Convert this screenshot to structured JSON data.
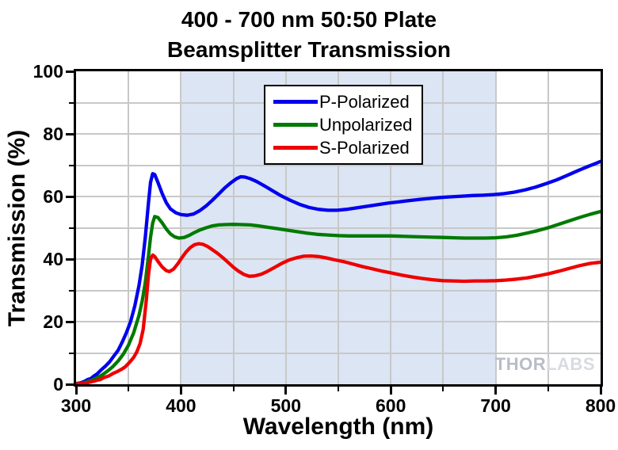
{
  "title": {
    "line1": "400 - 700 nm 50:50 Plate",
    "line2": "Beamsplitter Transmission"
  },
  "watermark": {
    "part1": "THOR",
    "part2": "LABS"
  },
  "colors": {
    "band": "#dce5f4",
    "grid": "#c8c8c8",
    "axis": "#000000",
    "watermark_dark": "#b9bcc6",
    "watermark_light": "#d9dbe2"
  },
  "chart_data": {
    "type": "line",
    "title": "400 - 700 nm 50:50 Plate Beamsplitter Transmission",
    "xlabel": "Wavelength (nm)",
    "ylabel": "Transmission (%)",
    "xlim": [
      300,
      800
    ],
    "ylim": [
      0,
      100
    ],
    "x_major_ticks": [
      300,
      400,
      500,
      600,
      700,
      800
    ],
    "x_minor_ticks": [
      350,
      450,
      550,
      650,
      750
    ],
    "y_major_ticks": [
      0,
      20,
      40,
      60,
      80,
      100
    ],
    "y_minor_ticks": [
      10,
      30,
      50,
      70,
      90
    ],
    "grid": true,
    "shaded_band_x": [
      400,
      700
    ],
    "legend_position": "top-center",
    "series": [
      {
        "name": "P-Polarized",
        "color": "#0000ee",
        "points": [
          [
            300,
            0.2
          ],
          [
            304,
            0.4
          ],
          [
            308,
            0.9
          ],
          [
            311,
            1.5
          ],
          [
            314,
            1.8
          ],
          [
            317,
            2.6
          ],
          [
            320,
            3.3
          ],
          [
            324,
            4.6
          ],
          [
            328,
            5.8
          ],
          [
            332,
            7.2
          ],
          [
            336,
            9.0
          ],
          [
            340,
            10.8
          ],
          [
            344,
            13.5
          ],
          [
            348,
            16.5
          ],
          [
            352,
            20.0
          ],
          [
            356,
            25.0
          ],
          [
            360,
            31.5
          ],
          [
            363,
            38.0
          ],
          [
            366,
            47.0
          ],
          [
            369,
            58.0
          ],
          [
            371,
            64.5
          ],
          [
            373,
            67.3
          ],
          [
            375,
            67.0
          ],
          [
            378,
            64.5
          ],
          [
            382,
            61.0
          ],
          [
            386,
            58.0
          ],
          [
            390,
            56.0
          ],
          [
            395,
            54.8
          ],
          [
            400,
            54.2
          ],
          [
            406,
            54.0
          ],
          [
            412,
            54.4
          ],
          [
            418,
            55.5
          ],
          [
            424,
            57.0
          ],
          [
            430,
            58.8
          ],
          [
            436,
            60.8
          ],
          [
            442,
            62.8
          ],
          [
            448,
            64.5
          ],
          [
            453,
            65.7
          ],
          [
            457,
            66.3
          ],
          [
            461,
            66.2
          ],
          [
            466,
            65.7
          ],
          [
            472,
            64.8
          ],
          [
            479,
            63.5
          ],
          [
            487,
            61.9
          ],
          [
            495,
            60.3
          ],
          [
            504,
            58.8
          ],
          [
            513,
            57.5
          ],
          [
            522,
            56.5
          ],
          [
            531,
            55.9
          ],
          [
            540,
            55.6
          ],
          [
            549,
            55.6
          ],
          [
            558,
            55.9
          ],
          [
            568,
            56.4
          ],
          [
            578,
            56.9
          ],
          [
            588,
            57.4
          ],
          [
            598,
            57.9
          ],
          [
            608,
            58.3
          ],
          [
            618,
            58.7
          ],
          [
            628,
            59.1
          ],
          [
            638,
            59.4
          ],
          [
            648,
            59.7
          ],
          [
            658,
            59.9
          ],
          [
            668,
            60.1
          ],
          [
            678,
            60.3
          ],
          [
            688,
            60.4
          ],
          [
            698,
            60.6
          ],
          [
            708,
            60.9
          ],
          [
            718,
            61.4
          ],
          [
            728,
            62.1
          ],
          [
            738,
            63.0
          ],
          [
            748,
            64.1
          ],
          [
            758,
            65.3
          ],
          [
            768,
            66.7
          ],
          [
            778,
            68.2
          ],
          [
            788,
            69.6
          ],
          [
            795,
            70.5
          ],
          [
            800,
            71.2
          ]
        ]
      },
      {
        "name": "Unpolarized",
        "color": "#007a00",
        "points": [
          [
            300,
            0.1
          ],
          [
            305,
            0.3
          ],
          [
            310,
            0.7
          ],
          [
            315,
            1.3
          ],
          [
            320,
            2.1
          ],
          [
            325,
            3.0
          ],
          [
            330,
            4.2
          ],
          [
            335,
            5.6
          ],
          [
            340,
            7.4
          ],
          [
            345,
            9.6
          ],
          [
            350,
            12.5
          ],
          [
            355,
            16.5
          ],
          [
            360,
            22.0
          ],
          [
            363,
            26.5
          ],
          [
            366,
            32.5
          ],
          [
            369,
            41.0
          ],
          [
            371,
            47.0
          ],
          [
            373,
            51.5
          ],
          [
            375,
            53.6
          ],
          [
            378,
            53.3
          ],
          [
            382,
            51.6
          ],
          [
            386,
            49.6
          ],
          [
            390,
            48.0
          ],
          [
            394,
            47.1
          ],
          [
            398,
            46.7
          ],
          [
            403,
            46.9
          ],
          [
            408,
            47.6
          ],
          [
            413,
            48.5
          ],
          [
            418,
            49.3
          ],
          [
            424,
            50.0
          ],
          [
            430,
            50.6
          ],
          [
            436,
            50.9
          ],
          [
            442,
            51.0
          ],
          [
            450,
            51.1
          ],
          [
            458,
            51.0
          ],
          [
            466,
            50.9
          ],
          [
            474,
            50.6
          ],
          [
            482,
            50.2
          ],
          [
            490,
            49.8
          ],
          [
            500,
            49.3
          ],
          [
            510,
            48.8
          ],
          [
            520,
            48.3
          ],
          [
            530,
            47.9
          ],
          [
            540,
            47.7
          ],
          [
            550,
            47.5
          ],
          [
            560,
            47.4
          ],
          [
            570,
            47.4
          ],
          [
            580,
            47.4
          ],
          [
            590,
            47.4
          ],
          [
            600,
            47.4
          ],
          [
            610,
            47.3
          ],
          [
            620,
            47.2
          ],
          [
            630,
            47.1
          ],
          [
            640,
            47.0
          ],
          [
            650,
            46.9
          ],
          [
            660,
            46.8
          ],
          [
            670,
            46.7
          ],
          [
            680,
            46.7
          ],
          [
            690,
            46.7
          ],
          [
            700,
            46.8
          ],
          [
            710,
            47.1
          ],
          [
            720,
            47.6
          ],
          [
            730,
            48.3
          ],
          [
            740,
            49.1
          ],
          [
            750,
            50.0
          ],
          [
            760,
            51.1
          ],
          [
            770,
            52.2
          ],
          [
            780,
            53.3
          ],
          [
            790,
            54.3
          ],
          [
            800,
            55.2
          ]
        ]
      },
      {
        "name": "S-Polarized",
        "color": "#ee0000",
        "points": [
          [
            300,
            0.1
          ],
          [
            306,
            0.2
          ],
          [
            311,
            0.5
          ],
          [
            316,
            0.9
          ],
          [
            320,
            1.3
          ],
          [
            323,
            1.5
          ],
          [
            327,
            2.2
          ],
          [
            331,
            2.6
          ],
          [
            335,
            3.4
          ],
          [
            339,
            4.0
          ],
          [
            343,
            4.7
          ],
          [
            347,
            5.6
          ],
          [
            351,
            7.0
          ],
          [
            355,
            8.6
          ],
          [
            358,
            10.4
          ],
          [
            361,
            13.0
          ],
          [
            364,
            17.5
          ],
          [
            367,
            27.0
          ],
          [
            369,
            35.0
          ],
          [
            371,
            40.0
          ],
          [
            373,
            41.3
          ],
          [
            375,
            40.8
          ],
          [
            378,
            39.3
          ],
          [
            382,
            37.5
          ],
          [
            386,
            36.3
          ],
          [
            389,
            36.0
          ],
          [
            393,
            36.8
          ],
          [
            397,
            38.5
          ],
          [
            401,
            40.5
          ],
          [
            405,
            42.3
          ],
          [
            409,
            43.7
          ],
          [
            413,
            44.6
          ],
          [
            417,
            44.9
          ],
          [
            421,
            44.7
          ],
          [
            425,
            44.1
          ],
          [
            430,
            43.0
          ],
          [
            435,
            41.8
          ],
          [
            440,
            40.4
          ],
          [
            445,
            38.9
          ],
          [
            450,
            37.4
          ],
          [
            455,
            36.1
          ],
          [
            460,
            35.1
          ],
          [
            465,
            34.5
          ],
          [
            470,
            34.6
          ],
          [
            476,
            35.1
          ],
          [
            482,
            36.0
          ],
          [
            489,
            37.3
          ],
          [
            496,
            38.6
          ],
          [
            503,
            39.7
          ],
          [
            510,
            40.4
          ],
          [
            517,
            40.9
          ],
          [
            524,
            41.0
          ],
          [
            531,
            40.8
          ],
          [
            538,
            40.4
          ],
          [
            546,
            39.8
          ],
          [
            555,
            39.2
          ],
          [
            564,
            38.4
          ],
          [
            573,
            37.6
          ],
          [
            582,
            36.9
          ],
          [
            591,
            36.2
          ],
          [
            600,
            35.6
          ],
          [
            610,
            34.9
          ],
          [
            620,
            34.3
          ],
          [
            630,
            33.8
          ],
          [
            640,
            33.4
          ],
          [
            650,
            33.1
          ],
          [
            660,
            33.0
          ],
          [
            670,
            32.9
          ],
          [
            680,
            33.0
          ],
          [
            690,
            33.0
          ],
          [
            700,
            33.1
          ],
          [
            710,
            33.3
          ],
          [
            720,
            33.6
          ],
          [
            730,
            34.0
          ],
          [
            740,
            34.6
          ],
          [
            750,
            35.3
          ],
          [
            760,
            36.1
          ],
          [
            770,
            37.0
          ],
          [
            780,
            37.9
          ],
          [
            790,
            38.6
          ],
          [
            800,
            39.0
          ]
        ]
      }
    ]
  }
}
